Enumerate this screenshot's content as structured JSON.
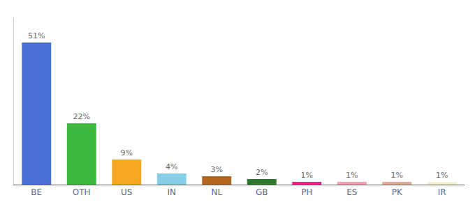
{
  "chart_data": {
    "type": "bar",
    "categories": [
      "BE",
      "OTH",
      "US",
      "IN",
      "NL",
      "GB",
      "PH",
      "ES",
      "PK",
      "IR"
    ],
    "values": [
      51,
      22,
      9,
      4,
      3,
      2,
      1,
      1,
      1,
      1
    ],
    "value_labels": [
      "51%",
      "22%",
      "9%",
      "4%",
      "3%",
      "2%",
      "1%",
      "1%",
      "1%",
      "1%"
    ],
    "colors": [
      "#4a6fd4",
      "#3cb83c",
      "#f5a623",
      "#87ceeb",
      "#b5651d",
      "#2d7a2d",
      "#e91e8c",
      "#f4a0b0",
      "#e8a898",
      "#f5f0d0"
    ],
    "data_labels": true,
    "ylim": [
      0,
      60
    ],
    "tick_labels": "x",
    "grid": false
  }
}
